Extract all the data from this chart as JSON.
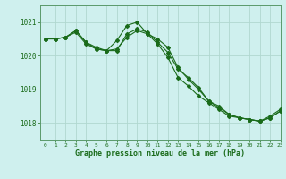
{
  "title": "Graphe pression niveau de la mer (hPa)",
  "background_color": "#cff0ee",
  "grid_color": "#b0d8d0",
  "line_color": "#1a6b1a",
  "spine_color": "#5a9a6a",
  "xlim": [
    -0.5,
    23
  ],
  "ylim": [
    1017.5,
    1021.5
  ],
  "yticks": [
    1018,
    1019,
    1020,
    1021
  ],
  "xticks": [
    0,
    1,
    2,
    3,
    4,
    5,
    6,
    7,
    8,
    9,
    10,
    11,
    12,
    13,
    14,
    15,
    16,
    17,
    18,
    19,
    20,
    21,
    22,
    23
  ],
  "series": [
    [
      1020.5,
      1020.5,
      1020.55,
      1020.75,
      1020.4,
      1020.25,
      1020.15,
      1020.15,
      1020.65,
      1020.8,
      1020.7,
      1020.4,
      1020.1,
      1019.6,
      1019.35,
      1019.05,
      1018.65,
      1018.45,
      1018.25,
      1018.15,
      1018.1,
      1018.05,
      1018.15,
      1018.35
    ],
    [
      1020.5,
      1020.5,
      1020.55,
      1020.75,
      1020.4,
      1020.2,
      1020.15,
      1020.45,
      1020.9,
      1021.0,
      1020.65,
      1020.5,
      1020.25,
      1019.65,
      1019.3,
      1019.0,
      1018.65,
      1018.5,
      1018.25,
      1018.15,
      1018.1,
      1018.05,
      1018.2,
      1018.4
    ],
    [
      1020.5,
      1020.5,
      1020.55,
      1020.7,
      1020.35,
      1020.2,
      1020.15,
      1020.2,
      1020.55,
      1020.75,
      1020.65,
      1020.35,
      1019.95,
      1019.35,
      1019.1,
      1018.8,
      1018.6,
      1018.4,
      1018.2,
      1018.15,
      1018.1,
      1018.05,
      1018.15,
      1018.35
    ]
  ]
}
